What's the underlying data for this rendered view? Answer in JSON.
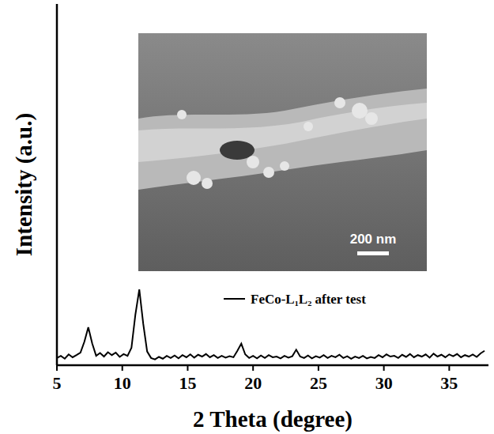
{
  "chart_data": {
    "type": "line",
    "x_label": "2 Theta (degree)",
    "y_label": "Intensity (a.u.)",
    "xlim": [
      5,
      38
    ],
    "xticks": [
      5,
      10,
      15,
      20,
      25,
      30,
      35
    ],
    "ylim": [
      0,
      100
    ],
    "tick_labels": "x",
    "legend": "right",
    "annotations": [
      "200 nm"
    ],
    "series": [
      {
        "name": "FeCo-L₁L₂ after test",
        "color": "#000000",
        "line_style": "solid",
        "x": [
          5.0,
          5.3,
          5.6,
          5.9,
          6.2,
          6.5,
          6.8,
          7.1,
          7.4,
          7.7,
          8.0,
          8.3,
          8.6,
          8.9,
          9.2,
          9.5,
          9.8,
          10.1,
          10.4,
          10.7,
          11.0,
          11.3,
          11.6,
          11.9,
          12.2,
          12.5,
          12.8,
          13.1,
          13.4,
          13.7,
          14.0,
          14.3,
          14.6,
          14.9,
          15.2,
          15.5,
          15.8,
          16.1,
          16.4,
          16.7,
          17.0,
          17.3,
          17.6,
          17.9,
          18.2,
          18.5,
          18.8,
          19.1,
          19.4,
          19.7,
          20.0,
          20.3,
          20.6,
          20.9,
          21.2,
          21.5,
          21.8,
          22.1,
          22.4,
          22.7,
          23.0,
          23.3,
          23.6,
          23.9,
          24.2,
          24.5,
          24.8,
          25.1,
          25.4,
          25.7,
          26.0,
          26.3,
          26.6,
          26.9,
          27.2,
          27.5,
          27.8,
          28.1,
          28.4,
          28.7,
          29.0,
          29.3,
          29.6,
          29.9,
          30.2,
          30.5,
          30.8,
          31.1,
          31.4,
          31.7,
          32.0,
          32.3,
          32.6,
          32.9,
          33.2,
          33.5,
          33.8,
          34.1,
          34.4,
          34.7,
          35.0,
          35.3,
          35.6,
          35.9,
          36.2,
          36.5,
          36.8,
          37.1,
          37.4,
          37.7
        ],
        "values": [
          2.0,
          2.6,
          1.8,
          3.0,
          2.2,
          2.8,
          3.5,
          6.5,
          10.5,
          6.0,
          2.6,
          3.4,
          2.4,
          3.6,
          2.8,
          3.5,
          2.3,
          3.1,
          2.6,
          4.8,
          14.0,
          21.0,
          11.5,
          3.8,
          2.0,
          1.6,
          2.3,
          1.8,
          2.6,
          2.0,
          2.7,
          1.9,
          2.8,
          2.2,
          3.0,
          2.1,
          2.9,
          2.4,
          3.1,
          2.2,
          2.8,
          2.0,
          2.6,
          2.1,
          2.5,
          2.2,
          4.0,
          6.0,
          3.0,
          2.0,
          2.6,
          1.9,
          2.7,
          2.0,
          2.8,
          2.2,
          2.4,
          1.9,
          2.6,
          2.1,
          2.5,
          4.3,
          2.4,
          2.0,
          2.7,
          1.9,
          2.5,
          2.1,
          2.8,
          2.0,
          2.6,
          2.2,
          2.9,
          2.0,
          2.5,
          1.8,
          2.4,
          2.0,
          2.6,
          1.9,
          2.3,
          2.0,
          2.8,
          2.2,
          3.0,
          2.4,
          2.6,
          2.0,
          2.9,
          2.3,
          3.1,
          2.2,
          2.8,
          2.4,
          3.0,
          2.1,
          3.2,
          2.4,
          2.9,
          2.2,
          3.0,
          2.5,
          3.1,
          2.2,
          2.8,
          2.4,
          3.0,
          2.3,
          3.3,
          4.0
        ]
      }
    ]
  }
}
